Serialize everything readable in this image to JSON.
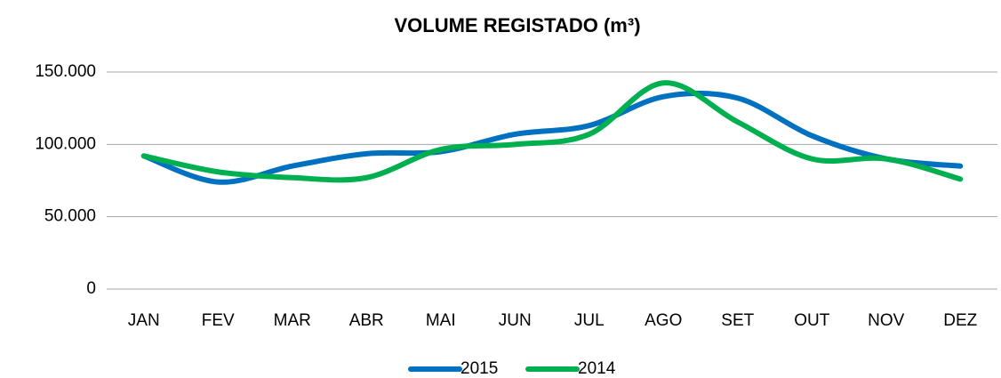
{
  "chart_data": {
    "type": "line",
    "title": "VOLUME REGISTADO (m³)",
    "categories": [
      "JAN",
      "FEV",
      "MAR",
      "ABR",
      "MAI",
      "JUN",
      "JUL",
      "AGO",
      "SET",
      "OUT",
      "NOV",
      "DEZ"
    ],
    "series": [
      {
        "name": "2015",
        "color": "#0070c0",
        "values": [
          92000,
          74000,
          85000,
          93500,
          95000,
          107000,
          113000,
          133000,
          132000,
          106000,
          90000,
          85000
        ]
      },
      {
        "name": "2014",
        "color": "#00b050",
        "values": [
          92000,
          81000,
          77000,
          77000,
          96500,
          100000,
          107000,
          142500,
          115500,
          90000,
          90000,
          76000
        ]
      }
    ],
    "ylim": [
      0,
      150000
    ],
    "yticks": [
      0,
      {
        "value": 50000,
        "label": "50.000"
      },
      {
        "value": 100000,
        "label": "100.000"
      },
      {
        "value": 150000,
        "label": "150.000"
      }
    ],
    "grid": true,
    "legend": "bottom"
  }
}
